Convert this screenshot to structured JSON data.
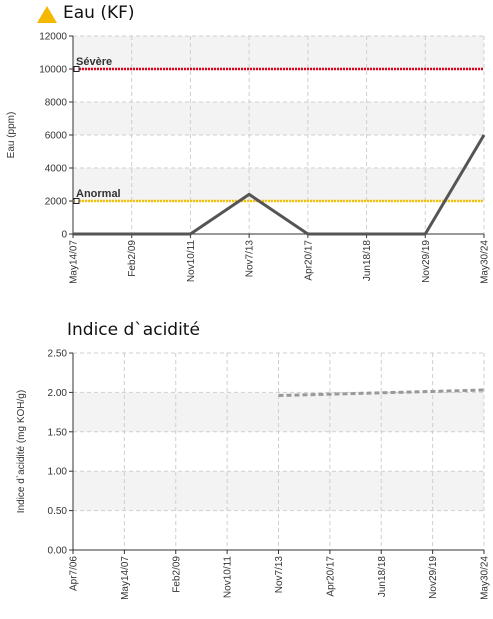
{
  "charts": [
    {
      "title": "Eau (KF)",
      "status_icon": "warning-triangle-icon",
      "status_color": "#f5b800"
    },
    {
      "title": "Indice d`acidité"
    }
  ],
  "chart_data": [
    {
      "type": "line",
      "title": "Eau (KF)",
      "xlabel": "",
      "ylabel": "Eau (ppm)",
      "ylim": [
        0,
        12000
      ],
      "yticks": [
        0,
        2000,
        4000,
        6000,
        8000,
        10000,
        12000
      ],
      "categories": [
        "May14/07",
        "Feb2/09",
        "Nov10/11",
        "Nov7/13",
        "Apr20/17",
        "Jun18/18",
        "Nov29/19",
        "May30/24"
      ],
      "grid": true,
      "series": [
        {
          "color": "#555555",
          "style": "solid",
          "points": [
            {
              "x": "May14/07",
              "y": 0
            },
            {
              "x": "Nov10/11",
              "y": 0
            },
            {
              "x": "Nov7/13",
              "y": 2400
            },
            {
              "x": "Apr20/17",
              "y": 0
            },
            {
              "x": "Nov29/19",
              "y": 0
            },
            {
              "x": "May30/24",
              "y": 6000
            }
          ]
        }
      ],
      "thresholds": [
        {
          "label": "Sévère",
          "value": 10000,
          "color": "#e0001a"
        },
        {
          "label": "Anormal",
          "value": 2000,
          "color": "#f5c200"
        }
      ]
    },
    {
      "type": "line",
      "title": "Indice d`acidité",
      "xlabel": "",
      "ylabel": "Indice d`acidité (mg KOH/g)",
      "ylim": [
        0,
        2.5
      ],
      "yticks": [
        "0.00",
        "0.50",
        "1.00",
        "1.50",
        "2.00",
        "2.50"
      ],
      "categories": [
        "Apr7/06",
        "May14/07",
        "Feb2/09",
        "Nov10/11",
        "Nov7/13",
        "Apr20/17",
        "Jun18/18",
        "Nov29/19",
        "May30/24"
      ],
      "grid": true,
      "series": [
        {
          "color": "#999999",
          "style": "dashed",
          "points": [
            {
              "x": "Nov7/13",
              "y": 1.96
            },
            {
              "x": "May30/24",
              "y": 2.03
            }
          ]
        }
      ],
      "thresholds": []
    }
  ]
}
